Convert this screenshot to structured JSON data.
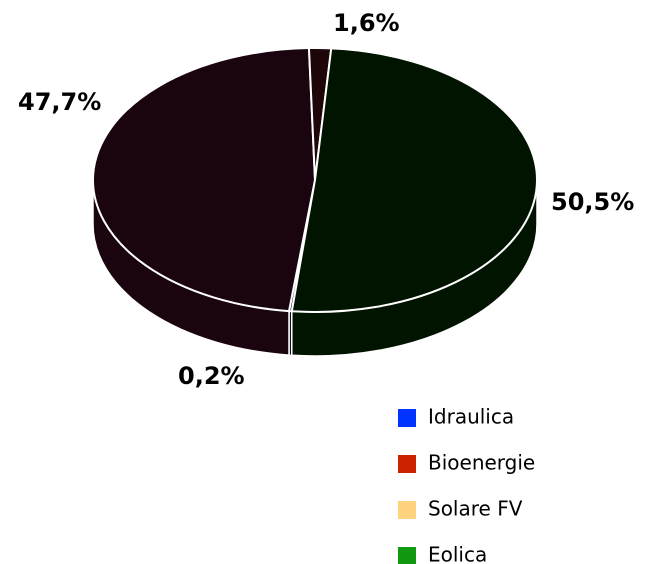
{
  "chart_data": {
    "type": "pie",
    "categories": [
      "Idraulica",
      "Bioenergie",
      "Solare FV",
      "Eolica"
    ],
    "values": [
      0.2,
      47.7,
      1.6,
      50.5
    ],
    "value_labels": [
      "0,2%",
      "47,7%",
      "1,6%",
      "50,5%"
    ],
    "colors": [
      "#0033ff",
      "#cc2200",
      "#ffd27f",
      "#119911"
    ],
    "slice_colors": [
      "#0a0a2a",
      "#1a0410",
      "#1e0508",
      "#001400"
    ],
    "legend": "bottom-right"
  }
}
